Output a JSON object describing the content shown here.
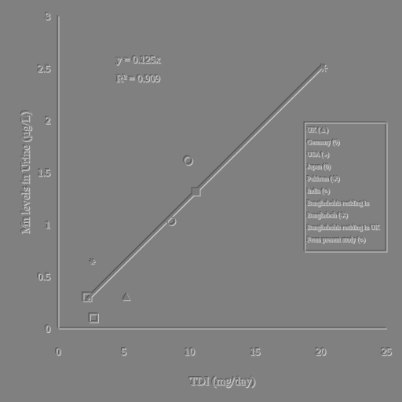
{
  "chart_data": {
    "type": "scatter",
    "xlabel": "TDI (mg/day)",
    "ylabel": "Mn levels in Urine (µg/L)",
    "xlim": [
      0,
      25
    ],
    "ylim": [
      0,
      3
    ],
    "x_ticks": [
      "0",
      "5",
      "10",
      "15",
      "20",
      "25"
    ],
    "y_ticks": [
      "0",
      "0.5",
      "1",
      "1.5",
      "2",
      "2.5",
      "3"
    ],
    "grid": false,
    "legend_position": "right",
    "annotations": [
      "y = 0.125x",
      "R² = 0.909"
    ],
    "trendline": {
      "slope": 0.125,
      "x_range": [
        2.2,
        20.2
      ]
    },
    "series": [
      {
        "name": "UK (▲)",
        "marker": "triangle",
        "points": [
          {
            "x": 5.2,
            "y": 0.3
          }
        ]
      },
      {
        "name": "Germany (◊)",
        "marker": "diamond",
        "points": []
      },
      {
        "name": "USA (●)",
        "marker": "circle",
        "points": []
      },
      {
        "name": "Japan (0)",
        "marker": "open-circle",
        "points": [
          {
            "x": 8.6,
            "y": 1.03
          }
        ]
      },
      {
        "name": "Pakistan (✱)",
        "marker": "asterisk",
        "points": []
      },
      {
        "name": "India (○)",
        "marker": "open-circle",
        "points": [
          {
            "x": 9.9,
            "y": 1.61
          }
        ]
      },
      {
        "name": "Bangladeshis residing in",
        "marker": "filled-square",
        "points": [
          {
            "x": 10.5,
            "y": 1.31
          }
        ]
      },
      {
        "name": "Bangladesh (✱)",
        "marker": "asterisk",
        "points": [
          {
            "x": 20.2,
            "y": 2.5
          }
        ]
      },
      {
        "name": "Bangladeshis residing in UK",
        "marker": "small-star",
        "points": [
          {
            "x": 2.6,
            "y": 0.64
          }
        ]
      },
      {
        "name": "From present study (○)",
        "marker": "open-square",
        "points": [
          {
            "x": 2.2,
            "y": 0.3
          },
          {
            "x": 2.7,
            "y": 0.1
          }
        ]
      }
    ]
  }
}
